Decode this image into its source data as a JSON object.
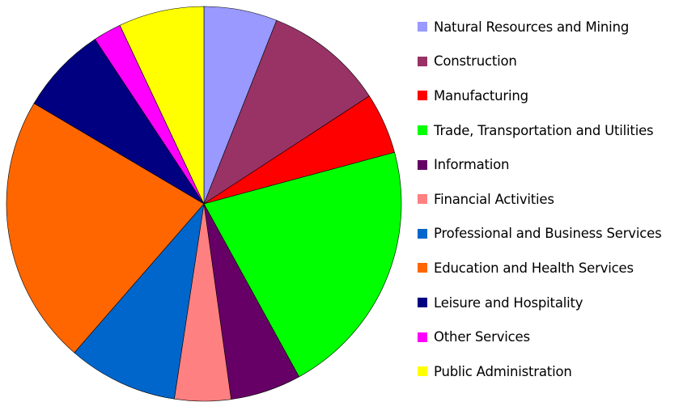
{
  "chart_data": {
    "type": "pie",
    "title": "",
    "start_angle_deg": 0,
    "direction": "clockwise",
    "legend_position": "right",
    "slices": [
      {
        "label": "Natural Resources and Mining",
        "value": 6.0,
        "color": "#9999ff"
      },
      {
        "label": "Construction",
        "value": 9.8,
        "color": "#993366"
      },
      {
        "label": "Manufacturing",
        "value": 5.0,
        "color": "#ff0000"
      },
      {
        "label": "Trade, Transportation and Utilities",
        "value": 21.2,
        "color": "#00ff00"
      },
      {
        "label": "Information",
        "value": 5.8,
        "color": "#660066"
      },
      {
        "label": "Financial Activities",
        "value": 4.6,
        "color": "#ff8080"
      },
      {
        "label": "Professional and Business Services",
        "value": 9.0,
        "color": "#0066cc"
      },
      {
        "label": "Education and Health Services",
        "value": 22.1,
        "color": "#ff6600"
      },
      {
        "label": "Leisure and Hospitality",
        "value": 7.2,
        "color": "#000080"
      },
      {
        "label": "Other Services",
        "value": 2.3,
        "color": "#ff00ff"
      },
      {
        "label": "Public Administration",
        "value": 7.0,
        "color": "#ffff00"
      }
    ]
  }
}
